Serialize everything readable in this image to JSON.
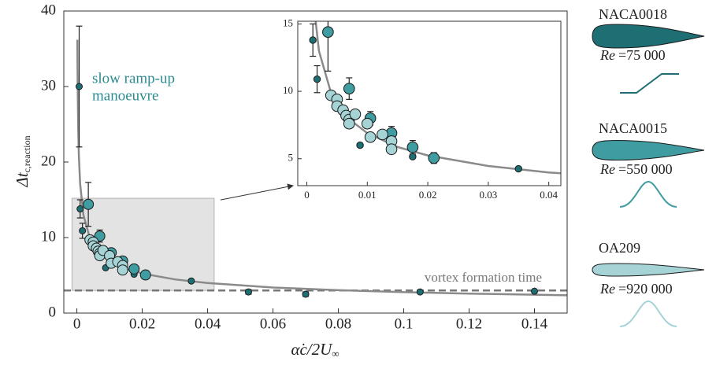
{
  "chart_data": [
    {
      "type": "scatter",
      "ylabel": "Δt",
      "ylabel_sub": "c,reaction",
      "xlabel": "α̇c/2U",
      "xlabel_sub": "∞",
      "xlim": [
        -0.004,
        0.15
      ],
      "ylim": [
        0,
        40
      ],
      "xticks": [
        0,
        0.02,
        0.04,
        0.06,
        0.08,
        0.1,
        0.12,
        0.14
      ],
      "yticks": [
        0,
        10,
        20,
        30,
        40
      ],
      "annotation": [
        "slow ramp-up",
        "manoeuvre"
      ],
      "annotation_color": "#2a8a90",
      "hline": {
        "value": 3,
        "label": "vortex formation time",
        "color": "#777777"
      },
      "reynolds_symbol": "Re",
      "fit": {
        "color": "#8a8a8a",
        "x": [
          0.00015,
          0.0002,
          0.0004,
          0.0006,
          0.001,
          0.002,
          0.004,
          0.007,
          0.01,
          0.015,
          0.02,
          0.03,
          0.04,
          0.06,
          0.08,
          0.1,
          0.12,
          0.15
        ],
        "values": [
          36.2,
          32.3,
          24.6,
          20.9,
          17.1,
          13.0,
          9.89,
          7.93,
          6.9,
          5.87,
          5.24,
          4.46,
          3.98,
          3.39,
          3.03,
          2.77,
          2.58,
          2.36
        ]
      },
      "series": [
        {
          "name": "NACA0018",
          "color": "#1e6f74",
          "reynolds": "=75 000",
          "marker_size": 4,
          "x": [
            0.0007,
            0.001,
            0.0017,
            0.0088,
            0.0175,
            0.035,
            0.0525,
            0.07,
            0.105,
            0.14
          ],
          "values": [
            30,
            13.8,
            10.9,
            6.0,
            5.15,
            4.25,
            2.8,
            2.5,
            2.8,
            2.9
          ],
          "errors": [
            8,
            1.2,
            1,
            null,
            null,
            null,
            0.3,
            0.3,
            null,
            null
          ]
        },
        {
          "name": "NACA0015",
          "color": "#3f9ca1",
          "reynolds": "=550 000",
          "marker_size": 6.5,
          "x": [
            0.0035,
            0.007,
            0.0105,
            0.014,
            0.0175,
            0.021
          ],
          "values": [
            14.4,
            10.2,
            8.0,
            6.9,
            5.85,
            5.05
          ],
          "errors": [
            2.9,
            0.8,
            0.5,
            0.5,
            0.5,
            0.4
          ]
        },
        {
          "name": "OA209",
          "color": "#a6d3d6",
          "reynolds": "=920 000",
          "marker_size": 6.5,
          "x": [
            0.004,
            0.005,
            0.005,
            0.006,
            0.0065,
            0.007,
            0.007,
            0.008,
            0.01,
            0.0105,
            0.0125,
            0.014,
            0.014
          ],
          "values": [
            9.7,
            9.4,
            8.9,
            8.6,
            8.2,
            7.9,
            7.6,
            8.3,
            7.6,
            6.6,
            6.8,
            6.3,
            5.7
          ]
        }
      ]
    },
    {
      "type": "inset",
      "xlim": [
        -0.0015,
        0.042
      ],
      "ylim": [
        3,
        15.2
      ],
      "xticks": [
        0,
        0.01,
        0.02,
        0.03,
        0.04
      ],
      "yticks": [
        5,
        10,
        15
      ]
    }
  ]
}
